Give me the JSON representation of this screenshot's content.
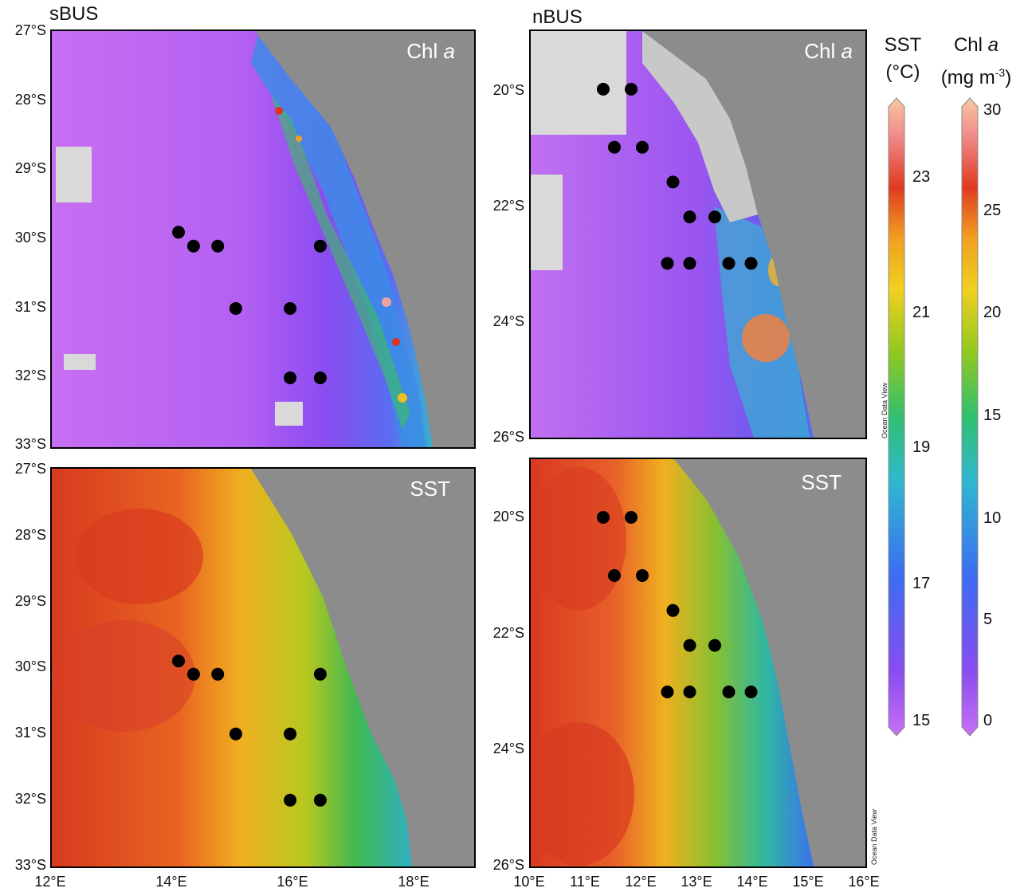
{
  "regions": {
    "south": "sBUS",
    "north": "nBUS"
  },
  "panels": {
    "chl_label_text": "Chl ",
    "chl_label_italic": "a",
    "sst_label": "SST"
  },
  "axes": {
    "south": {
      "lat_labels": [
        "27°S",
        "28°S",
        "29°S",
        "30°S",
        "31°S",
        "32°S",
        "33°S"
      ],
      "lon_labels": [
        "12°E",
        "14°E",
        "16°E",
        "18°E"
      ]
    },
    "north": {
      "lat_labels": [
        "20°S",
        "22°S",
        "24°S",
        "26°S"
      ],
      "lon_labels": [
        "10°E",
        "11°E",
        "12°E",
        "13°E",
        "14°E",
        "15°E",
        "16°E"
      ]
    }
  },
  "colorbars": {
    "sst": {
      "title_line1": "SST",
      "title_line2": "(°C)",
      "ticks": [
        "23",
        "21",
        "19",
        "17",
        "15"
      ]
    },
    "chl": {
      "title_line1_text": "Chl ",
      "title_line1_italic": "a",
      "title_line2": "(mg m",
      "title_line2_sup": "-3",
      "title_line2_end": ")",
      "ticks": [
        "30",
        "25",
        "20",
        "15",
        "10",
        "5",
        "0"
      ]
    }
  },
  "watermark": "Ocean Data View",
  "colors": {
    "land": "#8c8c8c",
    "station": "#000000",
    "nodata": "#d9d9d9"
  },
  "chart_data": [
    {
      "type": "scatter",
      "panel": "sBUS Chl a",
      "xlim": [
        12,
        19
      ],
      "ylim": [
        -33,
        -27
      ],
      "stations_lon": [
        14.1,
        14.35,
        14.75,
        15.05,
        15.95,
        16.45,
        15.95,
        16.45
      ],
      "stations_lat": [
        -29.9,
        -30.1,
        -30.1,
        -31.0,
        -31.0,
        -30.1,
        -32.0,
        -32.0
      ]
    },
    {
      "type": "scatter",
      "panel": "sBUS SST",
      "xlim": [
        12,
        19
      ],
      "ylim": [
        -33,
        -27
      ],
      "stations_lon": [
        14.1,
        14.35,
        14.75,
        15.05,
        15.95,
        16.45,
        15.95,
        16.45
      ],
      "stations_lat": [
        -29.9,
        -30.1,
        -30.1,
        -31.0,
        -31.0,
        -30.1,
        -32.0,
        -32.0
      ]
    },
    {
      "type": "scatter",
      "panel": "nBUS Chl a",
      "xlim": [
        10,
        16
      ],
      "ylim": [
        -26,
        -19
      ],
      "stations_lon": [
        11.3,
        11.8,
        11.5,
        12.0,
        12.55,
        12.85,
        13.3,
        12.45,
        12.85,
        13.55,
        13.95
      ],
      "stations_lat": [
        -20.0,
        -20.0,
        -21.0,
        -21.0,
        -21.6,
        -22.2,
        -22.2,
        -23.0,
        -23.0,
        -23.0,
        -23.0
      ]
    },
    {
      "type": "scatter",
      "panel": "nBUS SST",
      "xlim": [
        10,
        16
      ],
      "ylim": [
        -26,
        -19
      ],
      "stations_lon": [
        11.3,
        11.8,
        11.5,
        12.0,
        12.55,
        12.85,
        13.3,
        12.45,
        12.85,
        13.55,
        13.95
      ],
      "stations_lat": [
        -20.0,
        -20.0,
        -21.0,
        -21.0,
        -21.6,
        -22.2,
        -22.2,
        -23.0,
        -23.0,
        -23.0,
        -23.0
      ]
    }
  ]
}
